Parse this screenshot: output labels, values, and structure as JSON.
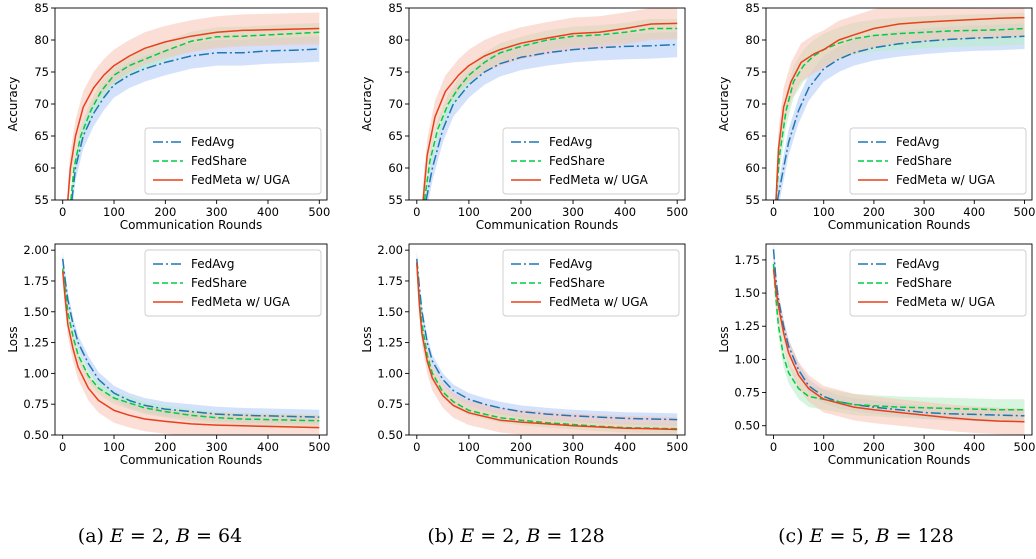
{
  "colors": {
    "fedavg": "#1f77b4",
    "fedshare": "#00cc44",
    "fedmeta": "#e8401c",
    "band_fedavg": "#aecbf5",
    "band_fedshare": "#b7ecc2",
    "band_fedmeta": "#f7c2b5"
  },
  "captions": [
    {
      "label": "(a) ",
      "eq1": "E",
      "eq2": " = 2, ",
      "eq3": "B",
      "eq4": " = 64"
    },
    {
      "label": "(b) ",
      "eq1": "E",
      "eq2": " = 2, ",
      "eq3": "B",
      "eq4": " = 128"
    },
    {
      "label": "(c) ",
      "eq1": "E",
      "eq2": " = 5, ",
      "eq3": "B",
      "eq4": " = 128"
    }
  ],
  "chart_data": [
    {
      "id": "a-acc",
      "type": "line",
      "xlabel": "Communication Rounds",
      "ylabel": "Accuracy",
      "xlim": [
        -15,
        515
      ],
      "ylim": [
        55,
        85
      ],
      "xticks": [
        0,
        100,
        200,
        300,
        400,
        500
      ],
      "yticks": [
        55,
        60,
        65,
        70,
        75,
        80,
        85
      ],
      "legend": "lower-right",
      "series": [
        {
          "name": "FedAvg",
          "style": "dashdot",
          "band": 2.0,
          "x": [
            18,
            25,
            40,
            60,
            80,
            100,
            130,
            160,
            200,
            250,
            300,
            350,
            400,
            450,
            500
          ],
          "y": [
            55,
            60,
            65,
            68.5,
            71,
            73,
            74.5,
            75.5,
            76.5,
            77.5,
            78,
            78,
            78.3,
            78.4,
            78.6
          ]
        },
        {
          "name": "FedShare",
          "style": "dashed",
          "band": 1.5,
          "x": [
            16,
            22,
            35,
            55,
            75,
            100,
            130,
            160,
            200,
            250,
            300,
            350,
            400,
            450,
            500
          ],
          "y": [
            55,
            60,
            65,
            69,
            72,
            74.5,
            76,
            77,
            78.3,
            79.8,
            80.5,
            80.6,
            80.8,
            81,
            81.2
          ]
        },
        {
          "name": "FedMeta w/ UGA",
          "style": "solid",
          "band": 2.5,
          "x": [
            10,
            15,
            25,
            40,
            60,
            80,
            100,
            130,
            160,
            200,
            250,
            300,
            350,
            400,
            450,
            500
          ],
          "y": [
            55,
            60,
            65,
            69.5,
            72.5,
            74.5,
            76,
            77.5,
            78.7,
            79.7,
            80.6,
            81.2,
            81.5,
            81.6,
            81.7,
            81.8
          ]
        }
      ]
    },
    {
      "id": "b-acc",
      "type": "line",
      "xlabel": "Communication Rounds",
      "ylabel": "Accuracy",
      "xlim": [
        -15,
        515
      ],
      "ylim": [
        55,
        85
      ],
      "xticks": [
        0,
        100,
        200,
        300,
        400,
        500
      ],
      "yticks": [
        55,
        60,
        65,
        70,
        75,
        80,
        85
      ],
      "legend": "lower-right",
      "series": [
        {
          "name": "FedAvg",
          "style": "dashdot",
          "band": 2.0,
          "x": [
            18,
            30,
            50,
            70,
            100,
            130,
            160,
            200,
            250,
            300,
            350,
            400,
            450,
            500
          ],
          "y": [
            55,
            60,
            66,
            70,
            73,
            75,
            76.3,
            77.3,
            78,
            78.5,
            78.8,
            79,
            79.1,
            79.3
          ]
        },
        {
          "name": "FedShare",
          "style": "dashed",
          "band": 1.5,
          "x": [
            15,
            25,
            40,
            60,
            80,
            100,
            130,
            160,
            200,
            250,
            300,
            350,
            400,
            450,
            500
          ],
          "y": [
            55,
            61,
            66,
            70,
            72.5,
            74.5,
            76.5,
            78,
            79,
            80,
            80.6,
            80.8,
            81.2,
            81.8,
            81.8
          ]
        },
        {
          "name": "FedMeta w/ UGA",
          "style": "solid",
          "band": 2.5,
          "x": [
            12,
            20,
            35,
            55,
            80,
            100,
            130,
            160,
            200,
            250,
            300,
            350,
            400,
            450,
            500
          ],
          "y": [
            55,
            62,
            68,
            72,
            74.5,
            76,
            77.5,
            78.5,
            79.5,
            80.3,
            81,
            81.2,
            81.8,
            82.5,
            82.6
          ]
        }
      ]
    },
    {
      "id": "c-acc",
      "type": "line",
      "xlabel": "Communication Rounds",
      "ylabel": "Accuracy",
      "xlim": [
        -15,
        515
      ],
      "ylim": [
        55,
        85
      ],
      "xticks": [
        0,
        100,
        200,
        300,
        400,
        500
      ],
      "yticks": [
        55,
        60,
        65,
        70,
        75,
        80,
        85
      ],
      "legend": "lower-right",
      "series": [
        {
          "name": "FedAvg",
          "style": "dashdot",
          "band": 2.0,
          "x": [
            8,
            15,
            30,
            50,
            70,
            100,
            130,
            160,
            200,
            250,
            300,
            350,
            400,
            450,
            500
          ],
          "y": [
            55,
            58,
            64,
            69,
            72.5,
            75.5,
            77,
            78,
            78.8,
            79.4,
            79.8,
            80.1,
            80.3,
            80.4,
            80.6
          ]
        },
        {
          "name": "FedShare",
          "style": "dashed",
          "band": 2.5,
          "x": [
            5,
            12,
            25,
            40,
            60,
            80,
            100,
            130,
            160,
            200,
            250,
            300,
            350,
            400,
            450,
            500
          ],
          "y": [
            55,
            62,
            69,
            73.5,
            76,
            77.5,
            78.5,
            79.5,
            80.2,
            80.7,
            81,
            81.2,
            81.4,
            81.5,
            81.6,
            81.8
          ]
        },
        {
          "name": "FedMeta w/ UGA",
          "style": "solid",
          "band": 3.0,
          "x": [
            5,
            10,
            20,
            35,
            55,
            80,
            100,
            130,
            160,
            200,
            250,
            300,
            350,
            400,
            450,
            500
          ],
          "y": [
            55,
            63,
            69.5,
            73.5,
            76.5,
            77.8,
            78.5,
            80,
            80.8,
            81.8,
            82.5,
            82.8,
            83,
            83.2,
            83.4,
            83.5
          ]
        }
      ]
    },
    {
      "id": "a-loss",
      "type": "line",
      "xlabel": "Communication Rounds",
      "ylabel": "Loss",
      "xlim": [
        -15,
        515
      ],
      "ylim": [
        0.5,
        2.05
      ],
      "xticks": [
        0,
        100,
        200,
        300,
        400,
        500
      ],
      "yticks": [
        0.5,
        0.75,
        1.0,
        1.25,
        1.5,
        1.75,
        2.0
      ],
      "ytick_labels": [
        "0.50",
        "0.75",
        "1.00",
        "1.25",
        "1.50",
        "1.75",
        "2.00"
      ],
      "legend": "upper-right",
      "series": [
        {
          "name": "FedAvg",
          "style": "dashdot",
          "band": 0.06,
          "x": [
            0,
            5,
            10,
            20,
            30,
            50,
            70,
            100,
            130,
            160,
            200,
            250,
            300,
            350,
            400,
            450,
            500
          ],
          "y": [
            1.93,
            1.75,
            1.6,
            1.4,
            1.25,
            1.08,
            0.95,
            0.84,
            0.78,
            0.74,
            0.71,
            0.69,
            0.67,
            0.66,
            0.655,
            0.65,
            0.645
          ]
        },
        {
          "name": "FedShare",
          "style": "dashed",
          "band": 0.05,
          "x": [
            0,
            5,
            10,
            20,
            30,
            50,
            70,
            100,
            130,
            160,
            200,
            250,
            300,
            350,
            400,
            450,
            500
          ],
          "y": [
            1.85,
            1.68,
            1.5,
            1.3,
            1.15,
            0.98,
            0.88,
            0.8,
            0.76,
            0.72,
            0.69,
            0.66,
            0.64,
            0.63,
            0.625,
            0.62,
            0.615
          ]
        },
        {
          "name": "FedMeta w/ UGA",
          "style": "solid",
          "band": 0.1,
          "x": [
            0,
            5,
            10,
            20,
            30,
            50,
            70,
            100,
            130,
            160,
            200,
            250,
            300,
            350,
            400,
            450,
            500
          ],
          "y": [
            1.83,
            1.6,
            1.4,
            1.2,
            1.05,
            0.88,
            0.78,
            0.7,
            0.66,
            0.63,
            0.61,
            0.59,
            0.58,
            0.575,
            0.57,
            0.565,
            0.56
          ]
        }
      ]
    },
    {
      "id": "b-loss",
      "type": "line",
      "xlabel": "Communication Rounds",
      "ylabel": "Loss",
      "xlim": [
        -15,
        515
      ],
      "ylim": [
        0.5,
        2.05
      ],
      "xticks": [
        0,
        100,
        200,
        300,
        400,
        500
      ],
      "yticks": [
        0.5,
        0.75,
        1.0,
        1.25,
        1.5,
        1.75,
        2.0
      ],
      "ytick_labels": [
        "0.50",
        "0.75",
        "1.00",
        "1.25",
        "1.50",
        "1.75",
        "2.00"
      ],
      "legend": "upper-right",
      "series": [
        {
          "name": "FedAvg",
          "style": "dashdot",
          "band": 0.05,
          "x": [
            0,
            5,
            10,
            20,
            30,
            50,
            70,
            100,
            130,
            160,
            200,
            250,
            300,
            350,
            400,
            450,
            500
          ],
          "y": [
            1.93,
            1.7,
            1.5,
            1.25,
            1.1,
            0.95,
            0.86,
            0.79,
            0.75,
            0.72,
            0.69,
            0.67,
            0.655,
            0.645,
            0.635,
            0.63,
            0.625
          ]
        },
        {
          "name": "FedShare",
          "style": "dashed",
          "band": 0.04,
          "x": [
            0,
            5,
            10,
            20,
            30,
            50,
            70,
            100,
            130,
            160,
            200,
            250,
            300,
            350,
            400,
            450,
            500
          ],
          "y": [
            1.9,
            1.6,
            1.4,
            1.15,
            1.0,
            0.85,
            0.77,
            0.7,
            0.67,
            0.64,
            0.62,
            0.6,
            0.585,
            0.57,
            0.56,
            0.555,
            0.55
          ]
        },
        {
          "name": "FedMeta w/ UGA",
          "style": "solid",
          "band": 0.1,
          "x": [
            0,
            5,
            10,
            20,
            30,
            50,
            70,
            100,
            130,
            160,
            200,
            250,
            300,
            350,
            400,
            450,
            500
          ],
          "y": [
            1.9,
            1.55,
            1.32,
            1.1,
            0.96,
            0.82,
            0.74,
            0.68,
            0.65,
            0.62,
            0.605,
            0.59,
            0.575,
            0.565,
            0.555,
            0.55,
            0.545
          ]
        }
      ]
    },
    {
      "id": "c-loss",
      "type": "line",
      "xlabel": "Communication Rounds",
      "ylabel": "Loss",
      "xlim": [
        -15,
        515
      ],
      "ylim": [
        0.43,
        1.87
      ],
      "xticks": [
        0,
        100,
        200,
        300,
        400,
        500
      ],
      "yticks": [
        0.5,
        0.75,
        1.0,
        1.25,
        1.5,
        1.75
      ],
      "ytick_labels": [
        "0.50",
        "0.75",
        "1.00",
        "1.25",
        "1.50",
        "1.75"
      ],
      "legend": "upper-right",
      "series": [
        {
          "name": "FedAvg",
          "style": "dashdot",
          "band": 0.05,
          "x": [
            0,
            5,
            10,
            20,
            30,
            50,
            70,
            100,
            130,
            160,
            200,
            250,
            300,
            350,
            400,
            450,
            500
          ],
          "y": [
            1.83,
            1.6,
            1.45,
            1.25,
            1.1,
            0.92,
            0.8,
            0.72,
            0.68,
            0.66,
            0.64,
            0.62,
            0.6,
            0.59,
            0.585,
            0.58,
            0.575
          ]
        },
        {
          "name": "FedShare",
          "style": "dashed",
          "band": 0.08,
          "x": [
            0,
            5,
            10,
            20,
            30,
            50,
            70,
            100,
            130,
            160,
            200,
            250,
            300,
            350,
            400,
            450,
            500
          ],
          "y": [
            1.72,
            1.45,
            1.25,
            1.02,
            0.9,
            0.78,
            0.72,
            0.7,
            0.68,
            0.66,
            0.65,
            0.64,
            0.635,
            0.63,
            0.625,
            0.62,
            0.62
          ]
        },
        {
          "name": "FedMeta w/ UGA",
          "style": "solid",
          "band": 0.1,
          "x": [
            0,
            5,
            10,
            20,
            30,
            50,
            70,
            100,
            130,
            160,
            200,
            250,
            300,
            350,
            400,
            450,
            500
          ],
          "y": [
            1.68,
            1.52,
            1.4,
            1.2,
            1.05,
            0.88,
            0.78,
            0.7,
            0.67,
            0.64,
            0.62,
            0.6,
            0.58,
            0.56,
            0.545,
            0.535,
            0.53
          ]
        }
      ]
    }
  ]
}
